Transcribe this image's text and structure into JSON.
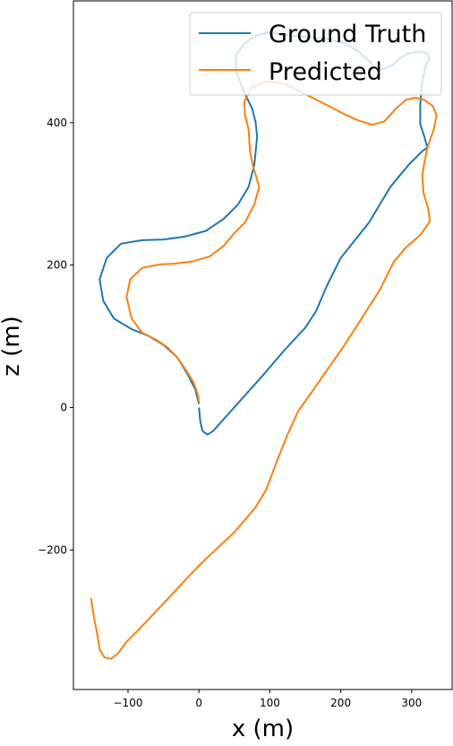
{
  "chart_data": {
    "type": "line",
    "xlabel": "x (m)",
    "ylabel": "z (m)",
    "xlim": [
      -177,
      357
    ],
    "ylim": [
      -396,
      571
    ],
    "x_ticks": [
      -100,
      0,
      100,
      200,
      300
    ],
    "y_ticks": [
      -200,
      0,
      200,
      400
    ],
    "x_tick_labels": [
      "−100",
      "0",
      "100",
      "200",
      "300"
    ],
    "y_tick_labels": [
      "−200",
      "0",
      "200",
      "400"
    ],
    "grid": false,
    "legend_position": "top-right",
    "series": [
      {
        "name": "Ground Truth",
        "color": "#1f77b4",
        "points": [
          [
            0,
            0
          ],
          [
            2,
            -20
          ],
          [
            5,
            -33
          ],
          [
            12,
            -38
          ],
          [
            20,
            -33
          ],
          [
            45,
            -5
          ],
          [
            90,
            45
          ],
          [
            120,
            80
          ],
          [
            150,
            112
          ],
          [
            165,
            135
          ],
          [
            180,
            170
          ],
          [
            200,
            210
          ],
          [
            240,
            260
          ],
          [
            270,
            310
          ],
          [
            295,
            340
          ],
          [
            315,
            360
          ],
          [
            322,
            365
          ],
          [
            318,
            380
          ],
          [
            312,
            398
          ],
          [
            312,
            425
          ],
          [
            315,
            460
          ],
          [
            320,
            480
          ],
          [
            325,
            490
          ],
          [
            322,
            498
          ],
          [
            310,
            500
          ],
          [
            295,
            497
          ],
          [
            283,
            490
          ],
          [
            272,
            480
          ],
          [
            260,
            475
          ],
          [
            248,
            478
          ],
          [
            238,
            488
          ],
          [
            225,
            500
          ],
          [
            205,
            512
          ],
          [
            180,
            518
          ],
          [
            155,
            520
          ],
          [
            130,
            522
          ],
          [
            100,
            527
          ],
          [
            80,
            522
          ],
          [
            65,
            512
          ],
          [
            52,
            495
          ],
          [
            53,
            470
          ],
          [
            65,
            440
          ],
          [
            75,
            420
          ],
          [
            80,
            400
          ],
          [
            82,
            380
          ],
          [
            78,
            340
          ],
          [
            70,
            310
          ],
          [
            55,
            285
          ],
          [
            35,
            265
          ],
          [
            10,
            248
          ],
          [
            -20,
            240
          ],
          [
            -50,
            236
          ],
          [
            -80,
            235
          ],
          [
            -110,
            230
          ],
          [
            -130,
            210
          ],
          [
            -140,
            180
          ],
          [
            -135,
            150
          ],
          [
            -120,
            125
          ],
          [
            -95,
            110
          ],
          [
            -70,
            100
          ],
          [
            -50,
            88
          ],
          [
            -30,
            70
          ],
          [
            -15,
            45
          ],
          [
            -5,
            25
          ],
          [
            0,
            5
          ]
        ]
      },
      {
        "name": "Predicted",
        "color": "#ff7f0e",
        "points": [
          [
            -152,
            -268
          ],
          [
            -148,
            -295
          ],
          [
            -143,
            -320
          ],
          [
            -140,
            -340
          ],
          [
            -133,
            -351
          ],
          [
            -124,
            -353
          ],
          [
            -114,
            -345
          ],
          [
            -103,
            -330
          ],
          [
            -85,
            -312
          ],
          [
            -50,
            -275
          ],
          [
            0,
            -222
          ],
          [
            50,
            -175
          ],
          [
            80,
            -140
          ],
          [
            95,
            -115
          ],
          [
            110,
            -75
          ],
          [
            125,
            -38
          ],
          [
            140,
            -5
          ],
          [
            165,
            30
          ],
          [
            200,
            80
          ],
          [
            225,
            118
          ],
          [
            255,
            165
          ],
          [
            275,
            205
          ],
          [
            292,
            225
          ],
          [
            313,
            243
          ],
          [
            326,
            262
          ],
          [
            323,
            280
          ],
          [
            317,
            300
          ],
          [
            315,
            325
          ],
          [
            318,
            345
          ],
          [
            323,
            368
          ],
          [
            331,
            390
          ],
          [
            335,
            410
          ],
          [
            330,
            423
          ],
          [
            318,
            432
          ],
          [
            305,
            435
          ],
          [
            292,
            432
          ],
          [
            278,
            420
          ],
          [
            262,
            402
          ],
          [
            245,
            397
          ],
          [
            225,
            403
          ],
          [
            205,
            412
          ],
          [
            180,
            425
          ],
          [
            150,
            440
          ],
          [
            120,
            455
          ],
          [
            95,
            458
          ],
          [
            75,
            450
          ],
          [
            64,
            430
          ],
          [
            65,
            410
          ],
          [
            70,
            390
          ],
          [
            72,
            360
          ],
          [
            76,
            340
          ],
          [
            82,
            320
          ],
          [
            85,
            310
          ],
          [
            78,
            285
          ],
          [
            65,
            260
          ],
          [
            50,
            245
          ],
          [
            35,
            227
          ],
          [
            15,
            212
          ],
          [
            -10,
            205
          ],
          [
            -35,
            202
          ],
          [
            -55,
            201
          ],
          [
            -80,
            196
          ],
          [
            -97,
            180
          ],
          [
            -102,
            155
          ],
          [
            -95,
            125
          ],
          [
            -80,
            105
          ],
          [
            -60,
            95
          ],
          [
            -45,
            85
          ],
          [
            -30,
            70
          ],
          [
            -18,
            52
          ],
          [
            -8,
            36
          ],
          [
            -2,
            20
          ],
          [
            0,
            8
          ]
        ]
      }
    ]
  }
}
